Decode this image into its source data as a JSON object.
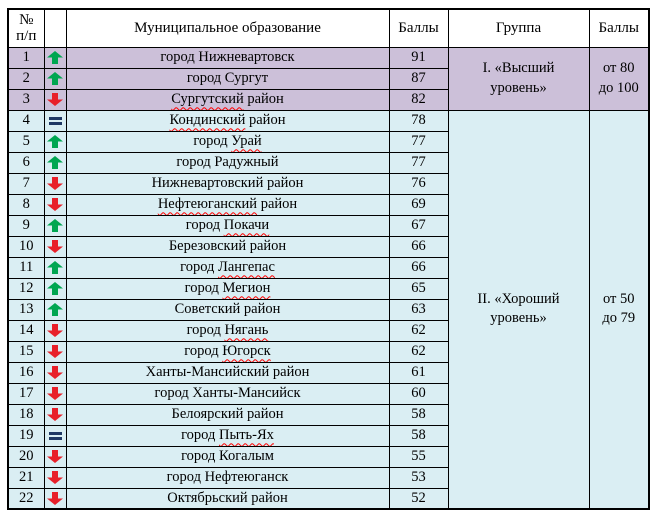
{
  "colors": {
    "purple_bg": "#ccc0d9",
    "blue_bg": "#daeef3",
    "arrow_up": "#00a651",
    "arrow_down": "#e8202a",
    "equal_sign": "#1f3864",
    "border": "#000000",
    "squiggle": "#ff0000"
  },
  "table": {
    "header": {
      "num_line1": "№",
      "num_line2": "п/п",
      "trend": "",
      "name": "Муниципальное образование",
      "score": "Баллы",
      "group": "Группа",
      "range": "Баллы"
    },
    "groups": [
      {
        "label_line1": "I. «Высший",
        "label_line2": "уровень»",
        "range_line1": "от 80",
        "range_line2": "до 100",
        "row_count": 3
      },
      {
        "label_line1": "II. «Хороший",
        "label_line2": "уровень»",
        "range_line1": "от 50",
        "range_line2": "до 79",
        "row_count": 19
      }
    ],
    "rows": [
      {
        "num": "1",
        "trend": "up",
        "name_parts": [
          {
            "text": "город Нижневартовск",
            "misspelled": false
          }
        ],
        "score": "91",
        "group": 0
      },
      {
        "num": "2",
        "trend": "up",
        "name_parts": [
          {
            "text": "город Сургут",
            "misspelled": false
          }
        ],
        "score": "87",
        "group": 0
      },
      {
        "num": "3",
        "trend": "down",
        "name_parts": [
          {
            "text": "Сургутский",
            "misspelled": true
          },
          {
            "text": " район",
            "misspelled": false
          }
        ],
        "score": "82",
        "group": 0
      },
      {
        "num": "4",
        "trend": "equal",
        "name_parts": [
          {
            "text": "Кондинский",
            "misspelled": true
          },
          {
            "text": " район",
            "misspelled": false
          }
        ],
        "score": "78",
        "group": 1
      },
      {
        "num": "5",
        "trend": "up",
        "name_parts": [
          {
            "text": "город ",
            "misspelled": false
          },
          {
            "text": "Урай",
            "misspelled": true
          }
        ],
        "score": "77",
        "group": 1
      },
      {
        "num": "6",
        "trend": "up",
        "name_parts": [
          {
            "text": "город Радужный",
            "misspelled": false
          }
        ],
        "score": "77",
        "group": 1
      },
      {
        "num": "7",
        "trend": "down",
        "name_parts": [
          {
            "text": "Нижневартовский район",
            "misspelled": false
          }
        ],
        "score": "76",
        "group": 1
      },
      {
        "num": "8",
        "trend": "down",
        "name_parts": [
          {
            "text": "Нефтеюганский",
            "misspelled": true
          },
          {
            "text": " район",
            "misspelled": false
          }
        ],
        "score": "69",
        "group": 1
      },
      {
        "num": "9",
        "trend": "up",
        "name_parts": [
          {
            "text": "город ",
            "misspelled": false
          },
          {
            "text": "Покачи",
            "misspelled": true
          }
        ],
        "score": "67",
        "group": 1
      },
      {
        "num": "10",
        "trend": "down",
        "name_parts": [
          {
            "text": "Березовский район",
            "misspelled": false
          }
        ],
        "score": "66",
        "group": 1
      },
      {
        "num": "11",
        "trend": "up",
        "name_parts": [
          {
            "text": "город ",
            "misspelled": false
          },
          {
            "text": "Лангепас",
            "misspelled": true
          }
        ],
        "score": "66",
        "group": 1
      },
      {
        "num": "12",
        "trend": "up",
        "name_parts": [
          {
            "text": "город ",
            "misspelled": false
          },
          {
            "text": "Мегион",
            "misspelled": true
          }
        ],
        "score": "65",
        "group": 1
      },
      {
        "num": "13",
        "trend": "up",
        "name_parts": [
          {
            "text": "Советский район",
            "misspelled": false
          }
        ],
        "score": "63",
        "group": 1
      },
      {
        "num": "14",
        "trend": "down",
        "name_parts": [
          {
            "text": "город ",
            "misspelled": false
          },
          {
            "text": "Нягань",
            "misspelled": true
          }
        ],
        "score": "62",
        "group": 1
      },
      {
        "num": "15",
        "trend": "down",
        "name_parts": [
          {
            "text": "город ",
            "misspelled": false
          },
          {
            "text": "Югорск",
            "misspelled": true
          }
        ],
        "score": "62",
        "group": 1
      },
      {
        "num": "16",
        "trend": "down",
        "name_parts": [
          {
            "text": "Ханты-Мансийский район",
            "misspelled": false
          }
        ],
        "score": "61",
        "group": 1
      },
      {
        "num": "17",
        "trend": "down",
        "name_parts": [
          {
            "text": "город Ханты-Мансийск",
            "misspelled": false
          }
        ],
        "score": "60",
        "group": 1
      },
      {
        "num": "18",
        "trend": "down",
        "name_parts": [
          {
            "text": "Белоярский район",
            "misspelled": false
          }
        ],
        "score": "58",
        "group": 1
      },
      {
        "num": "19",
        "trend": "equal",
        "name_parts": [
          {
            "text": "город ",
            "misspelled": false
          },
          {
            "text": "Пыть-Ях",
            "misspelled": true
          }
        ],
        "score": "58",
        "group": 1
      },
      {
        "num": "20",
        "trend": "down",
        "name_parts": [
          {
            "text": "город Когалым",
            "misspelled": false
          }
        ],
        "score": "55",
        "group": 1
      },
      {
        "num": "21",
        "trend": "down",
        "name_parts": [
          {
            "text": "город Нефтеюганск",
            "misspelled": false
          }
        ],
        "score": "53",
        "group": 1
      },
      {
        "num": "22",
        "trend": "down",
        "name_parts": [
          {
            "text": "Октябрьский район",
            "misspelled": false
          }
        ],
        "score": "52",
        "group": 1
      }
    ]
  }
}
